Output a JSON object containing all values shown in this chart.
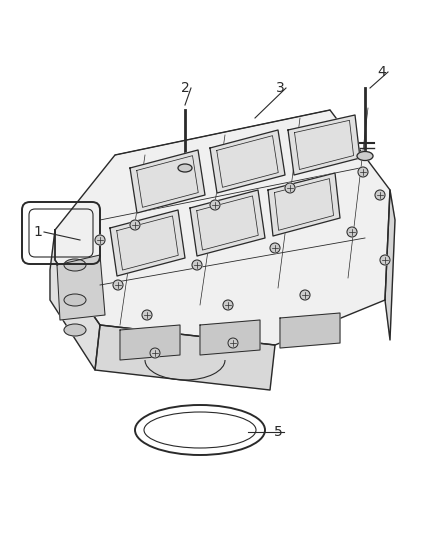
{
  "bg_color": "#ffffff",
  "line_color": "#2a2a2a",
  "figure_width": 4.38,
  "figure_height": 5.33,
  "dpi": 100,
  "manifold_color": "#f0f0f0",
  "manifold_shadow": "#d8d8d8",
  "port_fill": "#e0e0e0",
  "bolt_color": "#555555"
}
